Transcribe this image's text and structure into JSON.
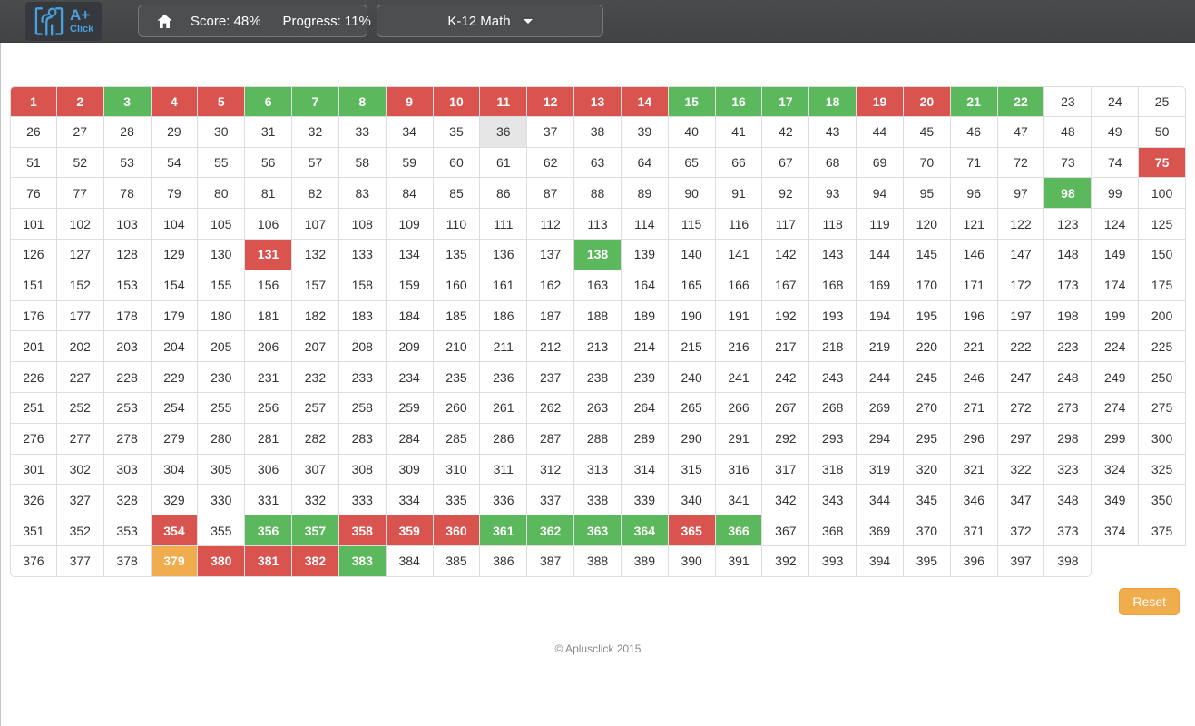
{
  "navbar": {
    "logo": {
      "line1": "A+",
      "line2": "Click"
    },
    "score_label": "Score: 48%",
    "progress_label": "Progress: 11%",
    "course_dropdown_label": "K-12 Math"
  },
  "grid": {
    "start": 1,
    "end": 398,
    "columns": 25,
    "states": {
      "red": [
        1,
        2,
        4,
        5,
        9,
        10,
        11,
        12,
        13,
        14,
        19,
        20,
        75,
        131,
        354,
        358,
        359,
        360,
        365,
        380,
        381,
        382
      ],
      "green": [
        3,
        6,
        7,
        8,
        15,
        16,
        17,
        18,
        21,
        22,
        98,
        138,
        356,
        357,
        361,
        362,
        363,
        364,
        366,
        383
      ],
      "orange": [
        379
      ],
      "highlighted": [
        36
      ]
    }
  },
  "colors": {
    "red": "#d9534f",
    "green": "#5cb85c",
    "orange": "#f0ad4e",
    "highlight": "#e6e6e6",
    "accent_blue": "#4a9fdd",
    "navbar_bg": "#454545"
  },
  "reset_button_label": "Reset",
  "footer_copyright": "© Aplusclick 2015"
}
